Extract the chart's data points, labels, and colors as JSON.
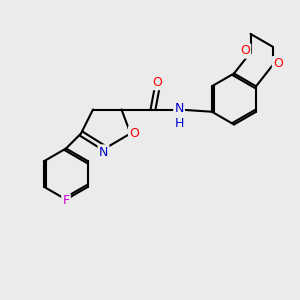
{
  "background_color": "#ebebeb",
  "bond_color": "#000000",
  "bond_width": 1.5,
  "atom_colors": {
    "O": "#ff0000",
    "N": "#0000cc",
    "F": "#cc00cc",
    "C": "#000000",
    "H": "#000000"
  },
  "font_size": 9,
  "fig_size": [
    3.0,
    3.0
  ],
  "dpi": 100
}
